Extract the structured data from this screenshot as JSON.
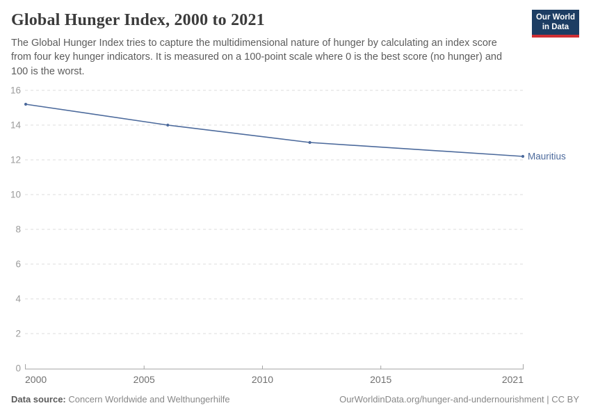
{
  "header": {
    "title": "Global Hunger Index, 2000 to 2021",
    "subtitle": "The Global Hunger Index tries to capture the multidimensional nature of hunger by calculating an index score from four key hunger indicators. It is measured on a 100-point scale where 0 is the best score (no hunger) and 100 is the worst.",
    "logo": {
      "line1": "Our World",
      "line2": "in Data",
      "bg_color": "#1d3d63",
      "accent_color": "#cf2f34"
    }
  },
  "chart_data": {
    "type": "line",
    "title": "Global Hunger Index, 2000 to 2021",
    "xlabel": "",
    "ylabel": "",
    "xlim": [
      2000,
      2021
    ],
    "ylim": [
      0,
      16
    ],
    "x_ticks": [
      2000,
      2005,
      2010,
      2015,
      2021
    ],
    "y_ticks": [
      0,
      2,
      4,
      6,
      8,
      10,
      12,
      14,
      16
    ],
    "grid": "horizontal-dashed",
    "legend_position": "end-of-line-label",
    "series": [
      {
        "name": "Mauritius",
        "color": "#4c6a9c",
        "points": [
          {
            "x": 2000,
            "y": 15.2
          },
          {
            "x": 2006,
            "y": 14.0
          },
          {
            "x": 2012,
            "y": 13.0
          },
          {
            "x": 2021,
            "y": 12.2
          }
        ]
      }
    ],
    "colors": {
      "gridline": "#dcdcdc",
      "axis": "#a3a3a3",
      "y_tick_label": "#9b9b9b",
      "x_tick_label": "#707070"
    }
  },
  "footer": {
    "source_label": "Data source:",
    "source_value": "Concern Worldwide and Welthungerhilfe",
    "link": "OurWorldinData.org/hunger-and-undernourishment | CC BY"
  }
}
